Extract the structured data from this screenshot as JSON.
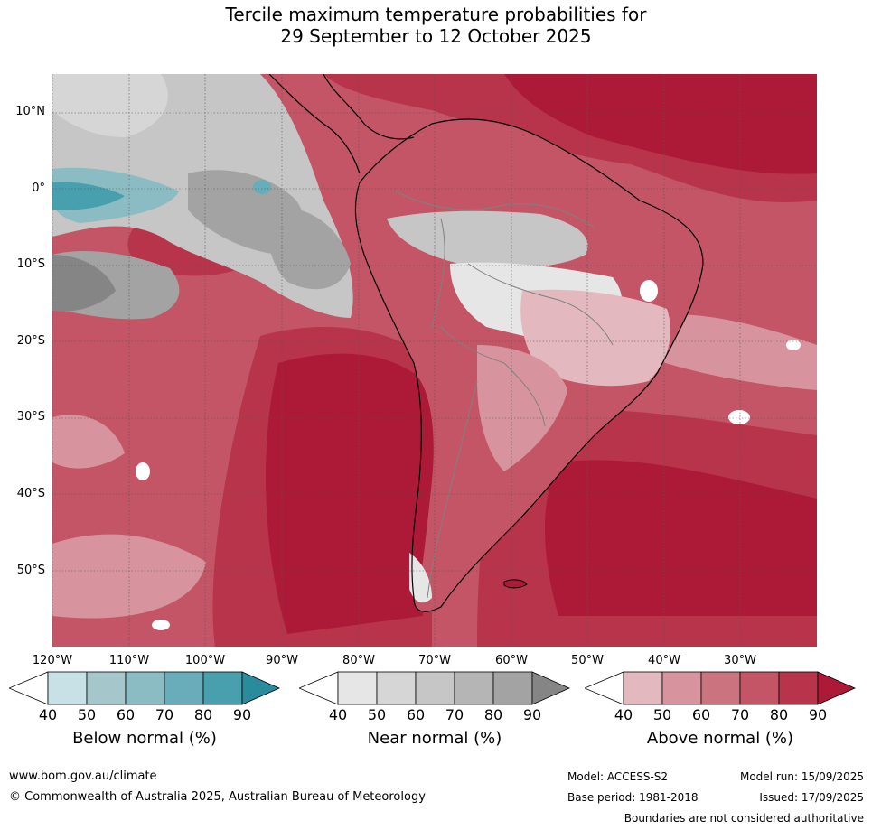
{
  "title": {
    "line1": "Tercile maximum temperature probabilities for",
    "line2": "29 September to 12 October 2025"
  },
  "map": {
    "lat_labels": [
      "10°N",
      "0°",
      "10°S",
      "20°S",
      "30°S",
      "40°S",
      "50°S"
    ],
    "lon_labels": [
      "120°W",
      "110°W",
      "100°W",
      "90°W",
      "80°W",
      "70°W",
      "60°W",
      "50°W",
      "40°W",
      "30°W"
    ],
    "colors": {
      "above": [
        "#e3b9bf",
        "#d8949e",
        "#cc7380",
        "#c35566",
        "#b8344b",
        "#ac1a37"
      ],
      "near": [
        "#e6e6e6",
        "#d6d6d6",
        "#c6c6c6",
        "#b5b5b5",
        "#a3a3a3",
        "#858585"
      ],
      "below": [
        "#c7e1e6",
        "#a5c7cc",
        "#8bbcc3",
        "#69adba",
        "#489fae",
        "#2a8b9c"
      ],
      "land_outline": "#000000",
      "border": "#808080"
    }
  },
  "colorbars": [
    {
      "title": "Below normal (%)",
      "ticks": [
        "40",
        "50",
        "60",
        "70",
        "80",
        "90"
      ],
      "colors": [
        "#ffffff",
        "#c7e1e6",
        "#a5c7cc",
        "#8bbcc3",
        "#69adba",
        "#489fae",
        "#2a8b9c"
      ]
    },
    {
      "title": "Near normal (%)",
      "ticks": [
        "40",
        "50",
        "60",
        "70",
        "80",
        "90"
      ],
      "colors": [
        "#ffffff",
        "#e6e6e6",
        "#d6d6d6",
        "#c6c6c6",
        "#b5b5b5",
        "#a3a3a3",
        "#858585"
      ]
    },
    {
      "title": "Above normal (%)",
      "ticks": [
        "40",
        "50",
        "60",
        "70",
        "80",
        "90"
      ],
      "colors": [
        "#ffffff",
        "#e3b9bf",
        "#d8949e",
        "#cc7380",
        "#c35566",
        "#b8344b",
        "#ac1a37"
      ]
    }
  ],
  "footer": {
    "website": "www.bom.gov.au/climate",
    "copyright": "© Commonwealth of Australia 2025, Australian Bureau of Meteorology",
    "model": "Model: ACCESS-S2",
    "base_period": "Base period: 1981-2018",
    "model_run": "Model run: 15/09/2025",
    "issued": "Issued: 17/09/2025",
    "disclaimer": "Boundaries are not considered authoritative"
  }
}
